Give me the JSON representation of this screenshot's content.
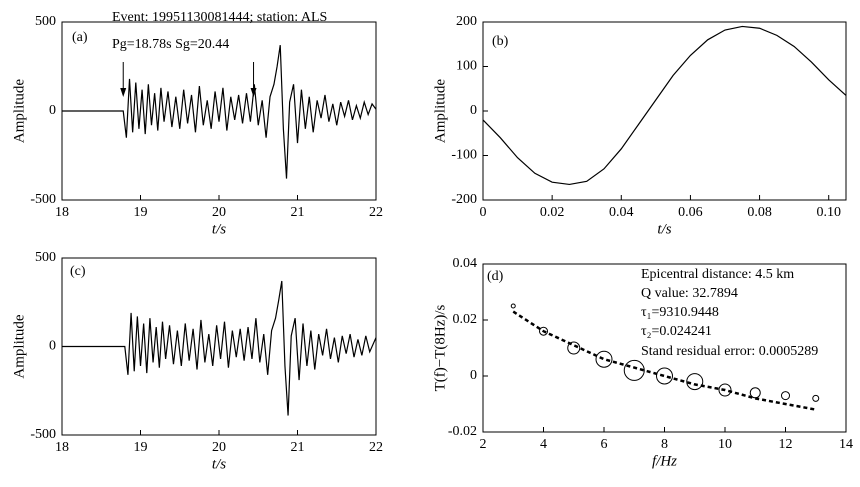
{
  "chart_data": [
    {
      "type": "line",
      "label": "(a)",
      "annotations": [
        "Event: 19951130081444;  station: ALS",
        "Pg=18.78s  Sg=20.44"
      ],
      "arrows_x": [
        18.78,
        20.44
      ],
      "xlabel": "t/s",
      "ylabel": "Amplitude",
      "color": "#000000",
      "xlim": [
        18,
        22
      ],
      "ylim": [
        -500,
        500
      ],
      "xticks": [
        18,
        19,
        20,
        21,
        22
      ],
      "yticks": [
        -500,
        0,
        500
      ],
      "x": [
        18,
        18.78,
        18.82,
        18.86,
        18.9,
        18.94,
        18.98,
        19.02,
        19.06,
        19.1,
        19.14,
        19.18,
        19.22,
        19.26,
        19.3,
        19.35,
        19.4,
        19.45,
        19.5,
        19.55,
        19.6,
        19.65,
        19.7,
        19.75,
        19.8,
        19.85,
        19.9,
        19.95,
        20.0,
        20.05,
        20.1,
        20.15,
        20.2,
        20.25,
        20.3,
        20.35,
        20.4,
        20.45,
        20.5,
        20.55,
        20.6,
        20.65,
        20.7,
        20.74,
        20.78,
        20.82,
        20.86,
        20.9,
        20.95,
        21.0,
        21.05,
        21.1,
        21.15,
        21.2,
        21.25,
        21.3,
        21.35,
        21.4,
        21.45,
        21.5,
        21.55,
        21.6,
        21.65,
        21.7,
        21.75,
        21.8,
        21.85,
        21.9,
        21.95,
        22.0
      ],
      "values": [
        0,
        0,
        -150,
        180,
        -120,
        160,
        -100,
        120,
        -130,
        150,
        -80,
        100,
        -110,
        130,
        -60,
        110,
        -90,
        80,
        -100,
        120,
        -70,
        90,
        -120,
        140,
        -80,
        60,
        -100,
        110,
        -60,
        130,
        -110,
        80,
        -50,
        90,
        -70,
        100,
        -60,
        150,
        -80,
        60,
        -150,
        80,
        150,
        250,
        370,
        -100,
        -380,
        50,
        150,
        -180,
        120,
        -100,
        80,
        -120,
        60,
        -40,
        90,
        -60,
        40,
        -80,
        50,
        -30,
        60,
        -50,
        30,
        -40,
        50,
        -20,
        40,
        10
      ]
    },
    {
      "type": "line",
      "label": "(b)",
      "xlabel": "t/s",
      "ylabel": "Amplitude",
      "color": "#000000",
      "xlim": [
        0,
        0.105
      ],
      "ylim": [
        -200,
        200
      ],
      "xticks": [
        0,
        0.02,
        0.04,
        0.06,
        0.08,
        {
          "value": 0.1,
          "label": "0.10"
        }
      ],
      "yticks": [
        -200,
        -100,
        0,
        100,
        200
      ],
      "x": [
        0,
        0.005,
        0.01,
        0.015,
        0.02,
        0.025,
        0.03,
        0.035,
        0.04,
        0.045,
        0.05,
        0.055,
        0.06,
        0.065,
        0.07,
        0.075,
        0.08,
        0.085,
        0.09,
        0.095,
        0.1,
        0.105
      ],
      "values": [
        -20,
        -60,
        -105,
        -140,
        -160,
        -165,
        -158,
        -130,
        -85,
        -30,
        25,
        80,
        125,
        160,
        182,
        190,
        186,
        170,
        145,
        110,
        70,
        35
      ]
    },
    {
      "type": "line",
      "label": "(c)",
      "xlabel": "t/s",
      "ylabel": "Amplitude",
      "color": "#000000",
      "xlim": [
        18,
        22
      ],
      "ylim": [
        -500,
        500
      ],
      "xticks": [
        18,
        19,
        20,
        21,
        22
      ],
      "yticks": [
        -500,
        0,
        500
      ],
      "x": [
        18,
        18.8,
        18.84,
        18.88,
        18.92,
        18.96,
        19.0,
        19.04,
        19.08,
        19.12,
        19.16,
        19.2,
        19.24,
        19.28,
        19.32,
        19.37,
        19.42,
        19.47,
        19.52,
        19.57,
        19.62,
        19.67,
        19.72,
        19.77,
        19.82,
        19.87,
        19.92,
        19.97,
        20.02,
        20.07,
        20.12,
        20.17,
        20.22,
        20.27,
        20.32,
        20.37,
        20.42,
        20.47,
        20.52,
        20.57,
        20.62,
        20.67,
        20.72,
        20.76,
        20.8,
        20.84,
        20.88,
        20.92,
        20.97,
        21.02,
        21.07,
        21.12,
        21.17,
        21.22,
        21.27,
        21.32,
        21.37,
        21.42,
        21.47,
        21.52,
        21.57,
        21.62,
        21.67,
        21.72,
        21.77,
        21.82,
        21.87,
        21.92,
        22.0
      ],
      "values": [
        0,
        0,
        -160,
        190,
        -140,
        170,
        -110,
        130,
        -150,
        160,
        -90,
        110,
        -120,
        140,
        -70,
        120,
        -100,
        90,
        -110,
        130,
        -80,
        100,
        -130,
        150,
        -90,
        70,
        -110,
        120,
        -70,
        140,
        -120,
        90,
        -60,
        100,
        -80,
        110,
        -70,
        160,
        -90,
        70,
        -160,
        90,
        160,
        260,
        370,
        -110,
        -390,
        60,
        160,
        -190,
        130,
        -110,
        90,
        -130,
        70,
        -50,
        100,
        -70,
        50,
        -90,
        60,
        -40,
        70,
        -60,
        40,
        -50,
        60,
        -30,
        50
      ]
    },
    {
      "type": "scatter",
      "label": "(d)",
      "annotations": [
        "Epicentral distance:  4.5 km",
        "Q  value: 32.7894",
        "τ₁=9310.9448",
        "τ₂=0.024241",
        "Stand residual error: 0.0005289"
      ],
      "xlabel": "f/Hz",
      "ylabel": "T(f)−T(8Hz)/s",
      "color": "#000000",
      "xlim": [
        2,
        14
      ],
      "ylim": [
        -0.02,
        0.04
      ],
      "xticks": [
        2,
        4,
        6,
        8,
        10,
        12,
        14
      ],
      "yticks": [
        -0.02,
        0,
        0.02,
        0.04
      ],
      "points": {
        "x": [
          3,
          4,
          5,
          6,
          7,
          8,
          9,
          10,
          11,
          12,
          13
        ],
        "values": [
          0.025,
          0.016,
          0.01,
          0.006,
          0.002,
          0.0,
          -0.002,
          -0.005,
          -0.006,
          -0.007,
          -0.008
        ],
        "sizes": [
          2,
          4,
          6,
          8,
          10,
          8,
          8,
          6,
          5,
          4,
          3
        ]
      },
      "fit": {
        "x": [
          3,
          4,
          5,
          6,
          7,
          8,
          9,
          10,
          11,
          12,
          13
        ],
        "values": [
          0.023,
          0.016,
          0.011,
          0.006,
          0.003,
          0.0,
          -0.003,
          -0.005,
          -0.008,
          -0.01,
          -0.012
        ]
      }
    }
  ]
}
